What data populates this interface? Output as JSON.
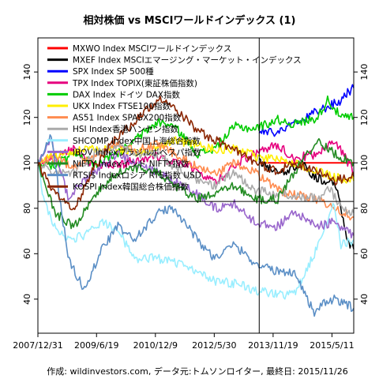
{
  "chart_data": {
    "type": "line",
    "title": "相対株価 vs MSCIワールドインデックス (1)",
    "footer": "作成: wildinvestors.com, データ元:トムソンロイター, 最終日: 2015/11/26",
    "x_tick_labels": [
      "2007/12/31",
      "2009/6/19",
      "2010/12/9",
      "2012/5/30",
      "2013/11/19",
      "2015/5/11"
    ],
    "x_tick_dates": [
      "2007-12-31",
      "2009-06-19",
      "2010-12-09",
      "2012-05-30",
      "2013-11-19",
      "2015-05-11"
    ],
    "x_range": [
      "2007-12-31",
      "2015-11-26"
    ],
    "ylim": [
      25,
      155
    ],
    "y_ticks": [
      40,
      60,
      80,
      100,
      120,
      140
    ],
    "reference_lines": {
      "horizontal_y": 83,
      "vertical_date": "2013-07-15"
    },
    "legend_placement": "top-left",
    "series": [
      {
        "name": "MXWO Index MSCIワールドインデックス",
        "color": "#ff0000",
        "x": [
          "2013-07-15",
          "2015-11-26"
        ],
        "y": [
          100,
          100
        ]
      },
      {
        "name": "MXEF Index MSCIエマージング・マーケット・インデックス",
        "color": "#000000",
        "x": [
          "2013-07-15",
          "2013-12-01",
          "2014-04-01",
          "2014-08-01",
          "2014-12-01",
          "2015-03-01",
          "2015-06-01",
          "2015-08-01",
          "2015-09-01",
          "2015-10-01",
          "2015-11-26"
        ],
        "y": [
          100,
          97,
          96,
          100,
          94,
          92,
          92,
          80,
          72,
          66,
          62
        ]
      },
      {
        "name": "SPX Index SP 500種",
        "color": "#0000ff",
        "x": [
          "2013-07-15",
          "2013-12-01",
          "2014-04-01",
          "2014-08-01",
          "2014-12-01",
          "2015-03-01",
          "2015-06-01",
          "2015-08-01",
          "2015-09-01",
          "2015-10-01",
          "2015-11-26"
        ],
        "y": [
          114,
          113,
          116,
          118,
          122,
          124,
          126,
          127,
          130,
          131,
          133
        ]
      },
      {
        "name": "TPX Index TOPIX(東証株価指数)",
        "color": "#e6007e",
        "x": [
          "2007-12-31",
          "2008-06-01",
          "2008-12-01",
          "2009-06-01",
          "2010-01-01",
          "2010-06-01",
          "2011-01-01",
          "2011-06-01",
          "2012-01-01",
          "2012-06-01",
          "2012-12-01",
          "2013-06-01",
          "2014-01-01",
          "2014-06-01",
          "2015-01-01",
          "2015-06-01",
          "2015-11-26"
        ],
        "y": [
          100,
          103,
          106,
          98,
          99,
          101,
          103,
          100,
          97,
          91,
          99,
          104,
          108,
          102,
          104,
          110,
          96
        ]
      },
      {
        "name": "DAX Index ドイツ DAX指数",
        "color": "#00cc00",
        "x": [
          "2007-12-31",
          "2008-06-01",
          "2008-12-01",
          "2009-06-01",
          "2010-01-01",
          "2010-06-01",
          "2011-01-01",
          "2011-06-01",
          "2012-01-01",
          "2012-06-01",
          "2012-12-01",
          "2013-06-01",
          "2014-01-01",
          "2014-06-01",
          "2015-01-01",
          "2015-04-01",
          "2015-08-01",
          "2015-11-26"
        ],
        "y": [
          100,
          99,
          104,
          99,
          104,
          110,
          118,
          116,
          104,
          106,
          116,
          115,
          119,
          117,
          120,
          128,
          120,
          120
        ]
      },
      {
        "name": "UKX Index FTSE100指数",
        "color": "#ffee00",
        "x": [
          "2007-12-31",
          "2008-06-01",
          "2008-12-01",
          "2009-06-01",
          "2010-01-01",
          "2010-06-01",
          "2011-01-01",
          "2011-06-01",
          "2012-01-01",
          "2012-06-01",
          "2012-12-01",
          "2013-06-01",
          "2014-01-01",
          "2014-06-01",
          "2015-01-01",
          "2015-06-01",
          "2015-11-26"
        ],
        "y": [
          100,
          103,
          105,
          106,
          106,
          104,
          106,
          110,
          108,
          106,
          106,
          103,
          101,
          100,
          96,
          94,
          92
        ]
      },
      {
        "name": "AS51 Index SPASX200指数",
        "color": "#ff8c50",
        "x": [
          "2007-12-31",
          "2008-06-01",
          "2008-12-01",
          "2009-06-01",
          "2010-01-01",
          "2010-06-01",
          "2011-01-01",
          "2011-06-01",
          "2012-01-01",
          "2012-06-01",
          "2012-12-01",
          "2013-06-01",
          "2014-01-01",
          "2014-06-01",
          "2015-01-01",
          "2015-06-01",
          "2015-11-26"
        ],
        "y": [
          100,
          102,
          98,
          103,
          108,
          106,
          108,
          104,
          98,
          95,
          100,
          96,
          88,
          86,
          84,
          80,
          76
        ]
      },
      {
        "name": "HSI Index香港ハンセン指数",
        "color": "#aaaaaa",
        "x": [
          "2007-12-31",
          "2008-06-01",
          "2008-12-01",
          "2009-06-01",
          "2010-01-01",
          "2010-06-01",
          "2011-01-01",
          "2011-06-01",
          "2012-01-01",
          "2012-06-01",
          "2012-12-01",
          "2013-06-01",
          "2014-01-01",
          "2014-06-01",
          "2015-01-01",
          "2015-04-01",
          "2015-08-01",
          "2015-11-26"
        ],
        "y": [
          100,
          95,
          96,
          104,
          108,
          104,
          104,
          98,
          92,
          90,
          96,
          88,
          86,
          86,
          84,
          90,
          80,
          78
        ]
      },
      {
        "name": "SHCOMP Index中国上海総合指数",
        "color": "#99eeff",
        "x": [
          "2007-12-31",
          "2008-03-01",
          "2008-06-01",
          "2008-10-01",
          "2009-03-01",
          "2009-08-01",
          "2010-01-01",
          "2010-06-01",
          "2011-01-01",
          "2011-06-01",
          "2012-01-01",
          "2012-06-01",
          "2012-12-01",
          "2013-06-01",
          "2014-01-01",
          "2014-06-01",
          "2014-12-01",
          "2015-03-01",
          "2015-06-01",
          "2015-08-01",
          "2015-11-26"
        ],
        "y": [
          100,
          82,
          72,
          66,
          68,
          74,
          70,
          58,
          58,
          56,
          52,
          48,
          47,
          44,
          42,
          42,
          60,
          72,
          82,
          64,
          66
        ]
      },
      {
        "name": "IBOV Indexブラジルボベスパ指数",
        "color": "#9966cc",
        "x": [
          "2007-12-31",
          "2008-05-01",
          "2008-10-01",
          "2009-06-01",
          "2010-01-01",
          "2010-06-01",
          "2011-01-01",
          "2011-06-01",
          "2012-01-01",
          "2012-06-01",
          "2012-12-01",
          "2013-06-01",
          "2014-01-01",
          "2014-06-01",
          "2015-01-01",
          "2015-06-01",
          "2015-11-26"
        ],
        "y": [
          100,
          110,
          85,
          96,
          104,
          100,
          96,
          92,
          86,
          80,
          82,
          74,
          72,
          78,
          72,
          74,
          68
        ]
      },
      {
        "name": "NIFTY Indexインド NIFTY指数",
        "color": "#228b22",
        "x": [
          "2007-12-31",
          "2008-06-01",
          "2008-12-01",
          "2009-06-01",
          "2010-01-01",
          "2010-06-01",
          "2011-01-01",
          "2011-06-01",
          "2012-01-01",
          "2012-06-01",
          "2012-12-01",
          "2013-06-01",
          "2014-01-01",
          "2014-06-01",
          "2015-01-01",
          "2015-06-01",
          "2015-11-26"
        ],
        "y": [
          100,
          78,
          72,
          86,
          96,
          98,
          96,
          90,
          84,
          86,
          90,
          84,
          84,
          96,
          110,
          104,
          100
        ]
      },
      {
        "name": "RTSI$ Indexロシア RTS指数 USD",
        "color": "#5b8fc6",
        "x": [
          "2007-12-31",
          "2008-05-01",
          "2008-10-01",
          "2009-03-01",
          "2009-08-01",
          "2010-01-01",
          "2010-06-01",
          "2011-01-01",
          "2011-06-01",
          "2012-01-01",
          "2012-06-01",
          "2012-12-01",
          "2013-06-01",
          "2014-01-01",
          "2014-06-01",
          "2014-12-01",
          "2015-03-01",
          "2015-06-01",
          "2015-11-26"
        ],
        "y": [
          100,
          112,
          58,
          44,
          62,
          72,
          66,
          78,
          80,
          66,
          58,
          64,
          56,
          52,
          52,
          34,
          38,
          40,
          36
        ]
      },
      {
        "name": "KOSPI Index韓国総合株価指数",
        "color": "#8b2500",
        "x": [
          "2007-12-31",
          "2008-06-01",
          "2008-12-01",
          "2009-06-01",
          "2010-01-01",
          "2010-06-01",
          "2011-01-01",
          "2011-06-01",
          "2012-01-01",
          "2012-06-01",
          "2012-12-01",
          "2013-06-01",
          "2014-01-01",
          "2014-06-01",
          "2015-01-01",
          "2015-06-01",
          "2015-11-26"
        ],
        "y": [
          100,
          86,
          80,
          98,
          112,
          118,
          128,
          124,
          114,
          110,
          106,
          100,
          96,
          100,
          96,
          92,
          94
        ]
      }
    ]
  }
}
